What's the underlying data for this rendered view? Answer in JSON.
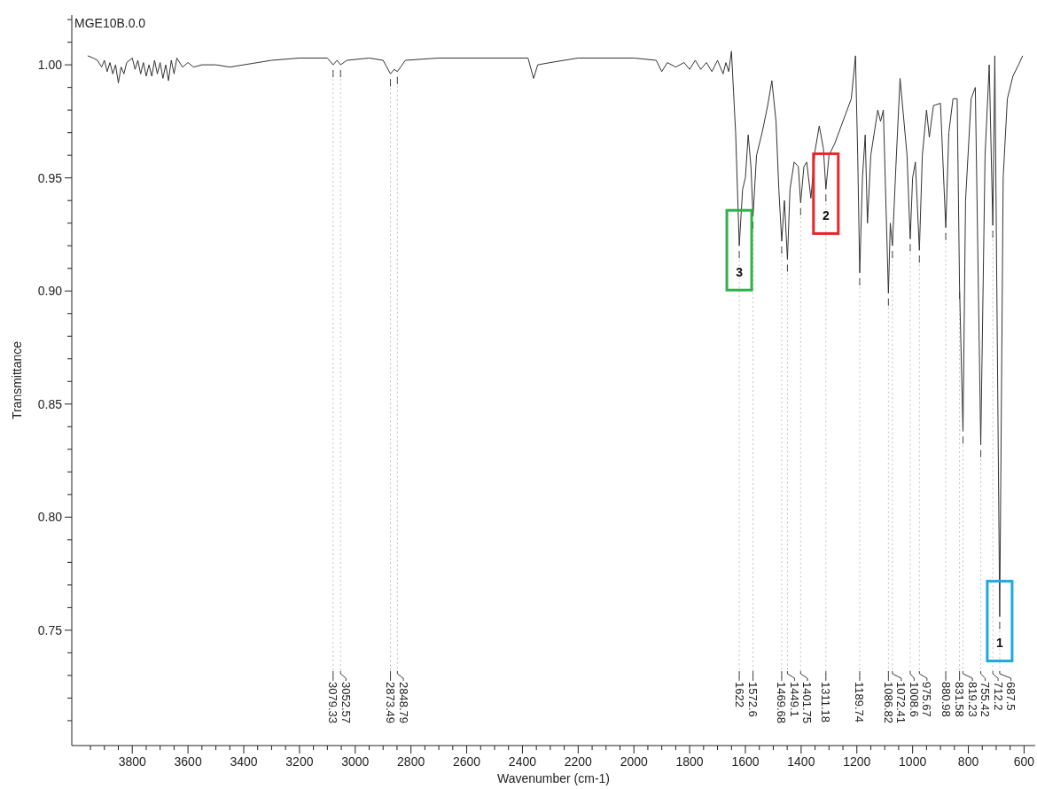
{
  "chart_data": {
    "type": "line",
    "title": "MGE10B.0.0",
    "xlabel": "Wavenumber (cm-1)",
    "ylabel": "Transmittance",
    "xlim": [
      4017,
      560
    ],
    "ylim": [
      0.699,
      1.022
    ],
    "xticks": [
      {
        "value": 3950,
        "label": null
      },
      {
        "value": 3900,
        "label": null
      },
      {
        "value": 3850,
        "label": null
      },
      3800,
      {
        "value": 3750,
        "label": null
      },
      {
        "value": 3700,
        "label": null
      },
      {
        "value": 3650,
        "label": null
      },
      3600,
      {
        "value": 3550,
        "label": null
      },
      {
        "value": 3500,
        "label": null
      },
      {
        "value": 3450,
        "label": null
      },
      3400,
      {
        "value": 3350,
        "label": null
      },
      {
        "value": 3300,
        "label": null
      },
      {
        "value": 3250,
        "label": null
      },
      3200,
      {
        "value": 3150,
        "label": null
      },
      {
        "value": 3100,
        "label": null
      },
      {
        "value": 3050,
        "label": null
      },
      3000,
      {
        "value": 2950,
        "label": null
      },
      {
        "value": 2900,
        "label": null
      },
      {
        "value": 2850,
        "label": null
      },
      2800,
      {
        "value": 2750,
        "label": null
      },
      {
        "value": 2700,
        "label": null
      },
      {
        "value": 2650,
        "label": null
      },
      2600,
      {
        "value": 2550,
        "label": null
      },
      {
        "value": 2500,
        "label": null
      },
      {
        "value": 2450,
        "label": null
      },
      2400,
      {
        "value": 2350,
        "label": null
      },
      {
        "value": 2300,
        "label": null
      },
      {
        "value": 2250,
        "label": null
      },
      2200,
      {
        "value": 2150,
        "label": null
      },
      {
        "value": 2100,
        "label": null
      },
      {
        "value": 2050,
        "label": null
      },
      2000,
      {
        "value": 1950,
        "label": null
      },
      {
        "value": 1900,
        "label": null
      },
      {
        "value": 1850,
        "label": null
      },
      1800,
      {
        "value": 1750,
        "label": null
      },
      {
        "value": 1700,
        "label": null
      },
      {
        "value": 1650,
        "label": null
      },
      1600,
      {
        "value": 1550,
        "label": null
      },
      {
        "value": 1500,
        "label": null
      },
      {
        "value": 1450,
        "label": null
      },
      1400,
      {
        "value": 1350,
        "label": null
      },
      {
        "value": 1300,
        "label": null
      },
      {
        "value": 1250,
        "label": null
      },
      1200,
      {
        "value": 1150,
        "label": null
      },
      {
        "value": 1100,
        "label": null
      },
      {
        "value": 1050,
        "label": null
      },
      1000,
      {
        "value": 950,
        "label": null
      },
      {
        "value": 900,
        "label": null
      },
      {
        "value": 850,
        "label": null
      },
      800,
      {
        "value": 750,
        "label": null
      },
      {
        "value": 700,
        "label": null
      },
      {
        "value": 650,
        "label": null
      },
      600
    ],
    "yticks": [
      {
        "value": 0.71,
        "label": null
      },
      {
        "value": 0.72,
        "label": null
      },
      {
        "value": 0.73,
        "label": null
      },
      {
        "value": 0.74,
        "label": null
      },
      {
        "value": 0.75,
        "label": "0.75"
      },
      {
        "value": 0.76,
        "label": null
      },
      {
        "value": 0.77,
        "label": null
      },
      {
        "value": 0.78,
        "label": null
      },
      {
        "value": 0.79,
        "label": null
      },
      {
        "value": 0.8,
        "label": "0.80"
      },
      {
        "value": 0.81,
        "label": null
      },
      {
        "value": 0.82,
        "label": null
      },
      {
        "value": 0.83,
        "label": null
      },
      {
        "value": 0.84,
        "label": null
      },
      {
        "value": 0.85,
        "label": "0.85"
      },
      {
        "value": 0.86,
        "label": null
      },
      {
        "value": 0.87,
        "label": null
      },
      {
        "value": 0.88,
        "label": null
      },
      {
        "value": 0.89,
        "label": null
      },
      {
        "value": 0.9,
        "label": "0.90"
      },
      {
        "value": 0.91,
        "label": null
      },
      {
        "value": 0.92,
        "label": null
      },
      {
        "value": 0.93,
        "label": null
      },
      {
        "value": 0.94,
        "label": null
      },
      {
        "value": 0.95,
        "label": "0.95"
      },
      {
        "value": 0.96,
        "label": null
      },
      {
        "value": 0.97,
        "label": null
      },
      {
        "value": 0.98,
        "label": null
      },
      {
        "value": 0.99,
        "label": null
      },
      {
        "value": 1.0,
        "label": "1.00"
      },
      {
        "value": 1.01,
        "label": null
      },
      {
        "value": 1.02,
        "label": null
      }
    ],
    "grid": false,
    "legend": false,
    "series": [
      {
        "color": "#333333",
        "x": [
          3960,
          3940,
          3925,
          3910,
          3900,
          3890,
          3880,
          3870,
          3860,
          3850,
          3840,
          3830,
          3820,
          3800,
          3790,
          3780,
          3770,
          3760,
          3750,
          3740,
          3730,
          3720,
          3710,
          3700,
          3690,
          3680,
          3670,
          3660,
          3650,
          3640,
          3620,
          3600,
          3580,
          3550,
          3500,
          3450,
          3400,
          3350,
          3300,
          3200,
          3100,
          3079.33,
          3065,
          3052.57,
          3030,
          2950,
          2900,
          2873.49,
          2860,
          2848.79,
          2820,
          2700,
          2500,
          2380,
          2360,
          2345,
          2300,
          2200,
          2000,
          1920,
          1900,
          1880,
          1850,
          1820,
          1800,
          1780,
          1760,
          1740,
          1720,
          1700,
          1680,
          1670,
          1660,
          1650,
          1635,
          1622,
          1610,
          1600,
          1590,
          1580,
          1572.6,
          1560,
          1540,
          1520,
          1505,
          1490,
          1480,
          1469.68,
          1460,
          1449.1,
          1440,
          1425,
          1410,
          1401.75,
          1390,
          1380,
          1365,
          1350,
          1335,
          1320,
          1311.18,
          1300,
          1280,
          1250,
          1220,
          1205,
          1197,
          1189.74,
          1180,
          1170,
          1162,
          1150,
          1125,
          1115,
          1105,
          1086.82,
          1080,
          1072.41,
          1060,
          1045,
          1020,
          1008.6,
          1000,
          990,
          975.67,
          965,
          950,
          940,
          925,
          900,
          880.98,
          870,
          855,
          840,
          831.58,
          819.23,
          810,
          790,
          775,
          755.42,
          740,
          725,
          712.2,
          705,
          687.5,
          675,
          660,
          640,
          620,
          605
        ],
        "values": [
          1.004,
          1.003,
          1.002,
          0.999,
          1.002,
          0.997,
          1.001,
          0.996,
          1.0,
          0.992,
          0.999,
          0.996,
          1.001,
          1.003,
          0.998,
          1.002,
          0.996,
          1.001,
          0.995,
          1.0,
          0.995,
          1.002,
          0.996,
          1.001,
          0.994,
          1.0,
          0.993,
          1.002,
          0.996,
          1.003,
          0.999,
          1.001,
          0.999,
          1.0,
          1.0,
          0.999,
          1.0,
          1.001,
          1.002,
          1.003,
          1.003,
          1.0,
          1.002,
          1.0,
          1.002,
          1.003,
          1.002,
          0.996,
          0.998,
          0.997,
          1.002,
          1.003,
          1.003,
          1.003,
          0.994,
          1.0,
          1.001,
          1.003,
          1.003,
          1.002,
          0.997,
          1.001,
          0.999,
          1.001,
          0.998,
          1.002,
          0.998,
          1.001,
          0.997,
          1.002,
          0.996,
          1.001,
          0.997,
          1.006,
          0.97,
          0.92,
          0.945,
          0.95,
          0.969,
          0.955,
          0.933,
          0.96,
          0.97,
          0.982,
          0.993,
          0.975,
          0.945,
          0.922,
          0.94,
          0.914,
          0.945,
          0.957,
          0.955,
          0.939,
          0.955,
          0.957,
          0.941,
          0.962,
          0.973,
          0.963,
          0.945,
          0.96,
          0.965,
          0.975,
          0.985,
          1.004,
          0.96,
          0.908,
          0.95,
          0.969,
          0.93,
          0.96,
          0.98,
          0.975,
          0.98,
          0.899,
          0.93,
          0.92,
          0.955,
          0.994,
          0.96,
          0.923,
          0.95,
          0.957,
          0.918,
          0.96,
          0.98,
          0.968,
          0.982,
          0.983,
          0.928,
          0.97,
          0.985,
          0.985,
          0.902,
          0.838,
          0.94,
          0.985,
          0.99,
          0.832,
          0.96,
          1.0,
          0.929,
          1.004,
          0.756,
          0.95,
          0.985,
          0.995,
          1.0,
          1.004
        ]
      }
    ],
    "annotations": [
      {
        "text": "1",
        "x": 687.5,
        "y": 0.756
      },
      {
        "text": "2",
        "x": 1311.18,
        "y": 0.945
      },
      {
        "text": "3",
        "x": 1622,
        "y": 0.92
      },
      {
        "text": "3079.33",
        "x": 3079.33,
        "y": 1.0
      },
      {
        "text": "3052.57",
        "x": 3052.57,
        "y": 1.0
      },
      {
        "text": "2873.49",
        "x": 2873.49,
        "y": 0.996
      },
      {
        "text": "2848.79",
        "x": 2848.79,
        "y": 0.997
      },
      {
        "text": "1622",
        "x": 1622,
        "y": 0.92
      },
      {
        "text": "1572.6",
        "x": 1572.6,
        "y": 0.933
      },
      {
        "text": "1469.68",
        "x": 1469.68,
        "y": 0.922
      },
      {
        "text": "1449.1",
        "x": 1449.1,
        "y": 0.914
      },
      {
        "text": "1401.75",
        "x": 1401.75,
        "y": 0.939
      },
      {
        "text": "1311.18",
        "x": 1311.18,
        "y": 0.945
      },
      {
        "text": "1189.74",
        "x": 1189.74,
        "y": 0.908
      },
      {
        "text": "1086.82",
        "x": 1086.82,
        "y": 0.899
      },
      {
        "text": "1072.41",
        "x": 1072.41,
        "y": 0.92
      },
      {
        "text": "1008.6",
        "x": 1008.6,
        "y": 0.923
      },
      {
        "text": "975.67",
        "x": 975.67,
        "y": 0.918
      },
      {
        "text": "880.98",
        "x": 880.98,
        "y": 0.928
      },
      {
        "text": "831.58",
        "x": 831.58,
        "y": 0.902
      },
      {
        "text": "819.23",
        "x": 819.23,
        "y": 0.838
      },
      {
        "text": "755.42",
        "x": 755.42,
        "y": 0.832
      },
      {
        "text": "712.2",
        "x": 712.2,
        "y": 0.929
      },
      {
        "text": "687.5",
        "x": 687.5,
        "y": 0.756
      }
    ]
  }
}
